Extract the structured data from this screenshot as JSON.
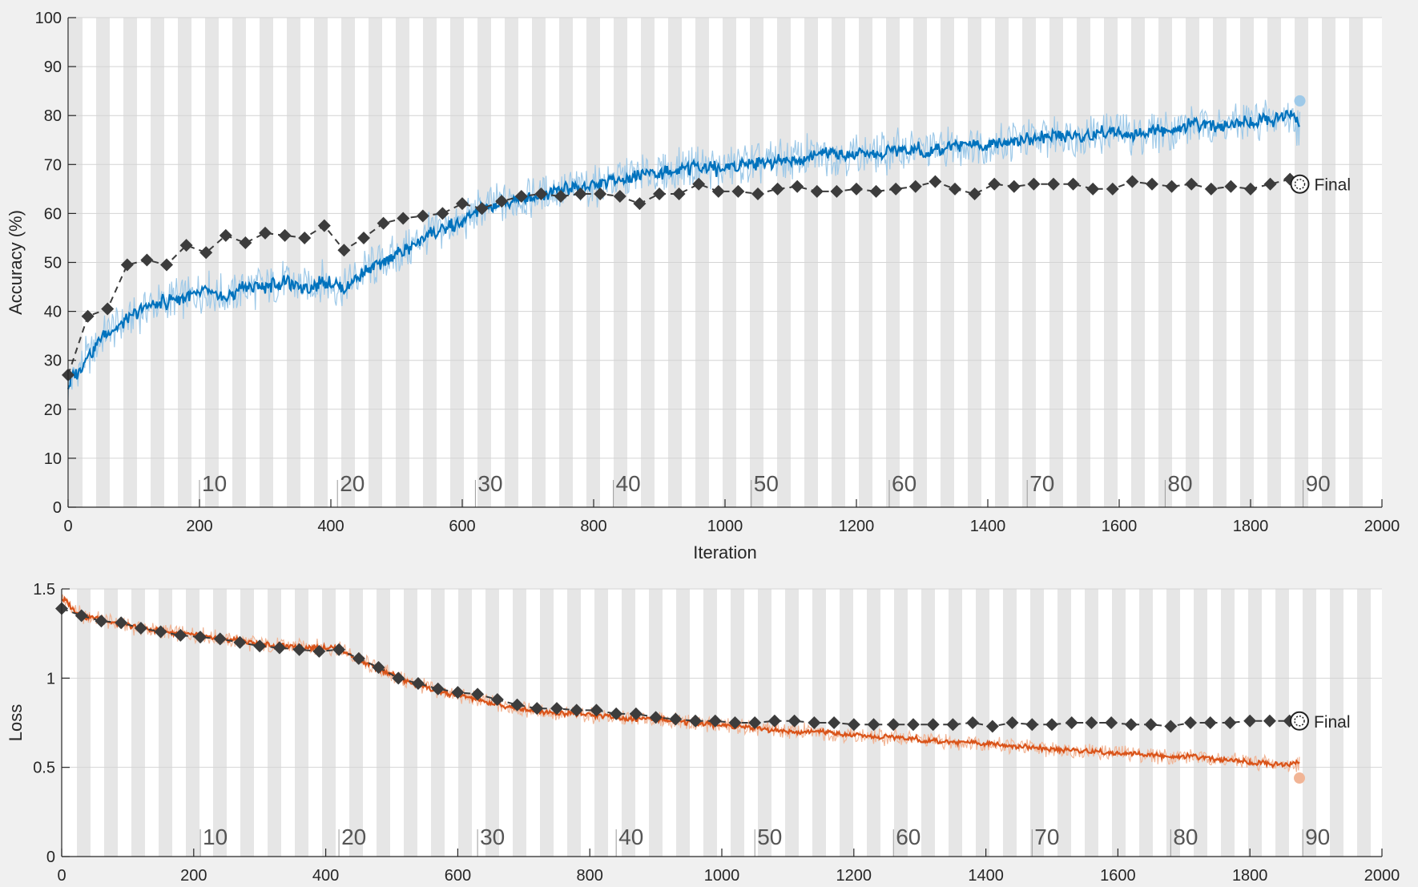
{
  "colors": {
    "background": "#f0f0f0",
    "plot_background": "#ffffff",
    "epoch_band": "#e6e6e6",
    "grid": "#d4d4d4",
    "accuracy_raw": "#9ec9e8",
    "accuracy_smoothed": "#0072bd",
    "loss_raw": "#f1b596",
    "loss_smoothed": "#d95319",
    "validation": "#3c3c3c"
  },
  "chart_data": [
    {
      "type": "line",
      "xlabel": "Iteration",
      "ylabel": "Accuracy (%)",
      "xlim": [
        0,
        2000
      ],
      "ylim": [
        0,
        100
      ],
      "xticks": [
        0,
        200,
        400,
        600,
        800,
        1000,
        1200,
        1400,
        1600,
        1800,
        2000
      ],
      "yticks": [
        0,
        10,
        20,
        30,
        40,
        50,
        60,
        70,
        80,
        90,
        100
      ],
      "ytick_labels": [
        "0",
        "10",
        "20",
        "30",
        "40",
        "50",
        "60",
        "70",
        "80",
        "90",
        "100"
      ],
      "grid": true,
      "epoch_markers": {
        "labels": [
          "10",
          "20",
          "30",
          "40",
          "50",
          "60",
          "70",
          "80",
          "90"
        ],
        "iterations": [
          200,
          410,
          620,
          830,
          1040,
          1250,
          1460,
          1670,
          1880
        ]
      },
      "training": {
        "x": [
          0,
          30,
          60,
          90,
          120,
          150,
          180,
          210,
          240,
          270,
          300,
          330,
          360,
          390,
          420,
          450,
          480,
          510,
          540,
          570,
          600,
          630,
          660,
          690,
          720,
          750,
          780,
          810,
          840,
          870,
          900,
          930,
          960,
          990,
          1020,
          1050,
          1080,
          1110,
          1140,
          1170,
          1200,
          1230,
          1260,
          1290,
          1320,
          1350,
          1380,
          1410,
          1440,
          1470,
          1500,
          1530,
          1560,
          1590,
          1620,
          1650,
          1680,
          1710,
          1740,
          1770,
          1800,
          1830,
          1860,
          1875
        ],
        "smoothed": [
          25,
          31,
          36,
          38,
          41,
          42,
          43,
          44,
          43,
          45,
          45,
          46,
          45,
          46,
          45,
          48,
          50,
          52,
          55,
          57,
          58,
          61,
          62,
          63,
          64,
          65,
          65,
          66,
          67,
          68,
          68,
          69,
          70,
          69,
          70,
          70,
          71,
          71,
          72,
          72,
          72,
          72,
          73,
          73,
          73,
          74,
          74,
          74,
          75,
          75,
          76,
          76,
          76,
          77,
          76,
          77,
          77,
          78,
          78,
          78,
          79,
          79,
          80,
          78
        ],
        "final": 83
      },
      "validation": {
        "x": [
          0,
          30,
          60,
          90,
          120,
          150,
          180,
          210,
          240,
          270,
          300,
          330,
          360,
          390,
          420,
          450,
          480,
          510,
          540,
          570,
          600,
          630,
          660,
          690,
          720,
          750,
          780,
          810,
          840,
          870,
          900,
          930,
          960,
          990,
          1020,
          1050,
          1080,
          1110,
          1140,
          1170,
          1200,
          1230,
          1260,
          1290,
          1320,
          1350,
          1380,
          1410,
          1440,
          1470,
          1500,
          1530,
          1560,
          1590,
          1620,
          1650,
          1680,
          1710,
          1740,
          1770,
          1800,
          1830,
          1860,
          1875
        ],
        "values": [
          27,
          39,
          40.5,
          49.5,
          50.5,
          49.5,
          53.5,
          52,
          55.5,
          54,
          56,
          55.5,
          55,
          57.5,
          52.5,
          55,
          58,
          59,
          59.5,
          60,
          62,
          61,
          62.5,
          63.5,
          64,
          63.5,
          64,
          64,
          63.5,
          62,
          64,
          64,
          66,
          64.5,
          64.5,
          64,
          65,
          65.5,
          64.5,
          64.5,
          65,
          64.5,
          65,
          65.5,
          66.5,
          65,
          64,
          66,
          65.5,
          66,
          66,
          66,
          65,
          65,
          66.5,
          66,
          65.5,
          66,
          65,
          65.5,
          65,
          66,
          67,
          66
        ]
      },
      "final_label": "Final"
    },
    {
      "type": "line",
      "xlabel": "",
      "ylabel": "Loss",
      "xlim": [
        0,
        2000
      ],
      "ylim": [
        0,
        1.5
      ],
      "xticks": [
        0,
        200,
        400,
        600,
        800,
        1000,
        1200,
        1400,
        1600,
        1800,
        2000
      ],
      "yticks": [
        0,
        0.5,
        1,
        1.5
      ],
      "ytick_labels": [
        "0",
        "0.5",
        "1",
        "1.5"
      ],
      "grid": true,
      "epoch_markers": {
        "labels": [
          "10",
          "20",
          "30",
          "40",
          "50",
          "60",
          "70",
          "80",
          "90"
        ],
        "iterations": [
          210,
          420,
          630,
          840,
          1050,
          1260,
          1470,
          1680,
          1880
        ]
      },
      "training": {
        "x": [
          0,
          30,
          60,
          90,
          120,
          150,
          180,
          210,
          240,
          270,
          300,
          330,
          360,
          390,
          420,
          450,
          480,
          510,
          540,
          570,
          600,
          630,
          660,
          690,
          720,
          750,
          780,
          810,
          840,
          870,
          900,
          930,
          960,
          990,
          1020,
          1050,
          1080,
          1110,
          1140,
          1170,
          1200,
          1230,
          1260,
          1290,
          1320,
          1350,
          1380,
          1410,
          1440,
          1470,
          1500,
          1530,
          1560,
          1590,
          1620,
          1650,
          1680,
          1710,
          1740,
          1770,
          1800,
          1830,
          1860,
          1875
        ],
        "smoothed": [
          1.45,
          1.35,
          1.33,
          1.3,
          1.28,
          1.26,
          1.25,
          1.24,
          1.22,
          1.21,
          1.19,
          1.18,
          1.18,
          1.17,
          1.17,
          1.1,
          1.05,
          1.0,
          0.96,
          0.93,
          0.9,
          0.88,
          0.85,
          0.83,
          0.82,
          0.8,
          0.8,
          0.79,
          0.78,
          0.77,
          0.77,
          0.76,
          0.75,
          0.74,
          0.73,
          0.72,
          0.71,
          0.7,
          0.7,
          0.69,
          0.68,
          0.67,
          0.67,
          0.66,
          0.65,
          0.64,
          0.64,
          0.63,
          0.62,
          0.61,
          0.6,
          0.6,
          0.59,
          0.58,
          0.58,
          0.57,
          0.56,
          0.56,
          0.55,
          0.54,
          0.53,
          0.52,
          0.51,
          0.53
        ],
        "final": 0.44
      },
      "validation": {
        "x": [
          0,
          30,
          60,
          90,
          120,
          150,
          180,
          210,
          240,
          270,
          300,
          330,
          360,
          390,
          420,
          450,
          480,
          510,
          540,
          570,
          600,
          630,
          660,
          690,
          720,
          750,
          780,
          810,
          840,
          870,
          900,
          930,
          960,
          990,
          1020,
          1050,
          1080,
          1110,
          1140,
          1170,
          1200,
          1230,
          1260,
          1290,
          1320,
          1350,
          1380,
          1410,
          1440,
          1470,
          1500,
          1530,
          1560,
          1590,
          1620,
          1650,
          1680,
          1710,
          1740,
          1770,
          1800,
          1830,
          1860,
          1875
        ],
        "values": [
          1.39,
          1.35,
          1.32,
          1.31,
          1.28,
          1.26,
          1.24,
          1.23,
          1.22,
          1.2,
          1.18,
          1.17,
          1.16,
          1.15,
          1.16,
          1.11,
          1.06,
          1.0,
          0.97,
          0.94,
          0.92,
          0.91,
          0.88,
          0.85,
          0.83,
          0.83,
          0.82,
          0.82,
          0.8,
          0.8,
          0.78,
          0.77,
          0.76,
          0.76,
          0.75,
          0.75,
          0.76,
          0.76,
          0.75,
          0.75,
          0.74,
          0.74,
          0.74,
          0.74,
          0.74,
          0.74,
          0.75,
          0.73,
          0.75,
          0.74,
          0.74,
          0.75,
          0.75,
          0.75,
          0.74,
          0.74,
          0.73,
          0.75,
          0.75,
          0.75,
          0.76,
          0.76,
          0.76,
          0.76
        ]
      },
      "final_label": "Final"
    }
  ]
}
